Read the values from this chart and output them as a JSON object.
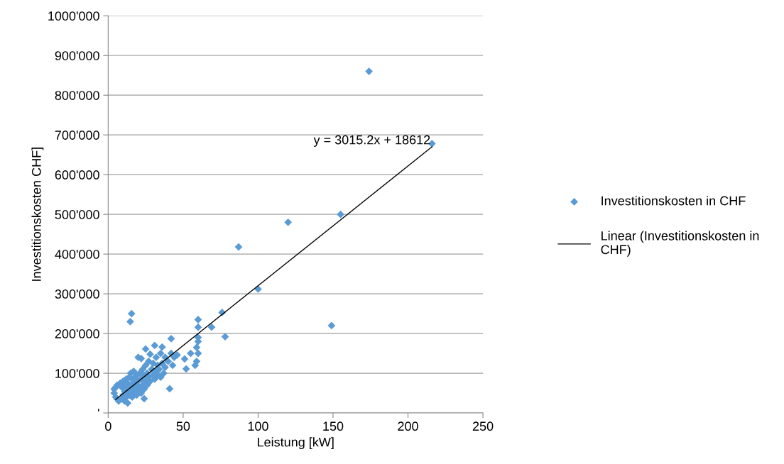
{
  "chart_data": {
    "type": "scatter",
    "xlabel": "Leistung [kW]",
    "ylabel": "Investitionskosten CHF]",
    "annotations": [
      "y = 3015.2x + 18612"
    ],
    "xlim": [
      0,
      250
    ],
    "xticks": [
      0,
      50,
      100,
      150,
      200,
      250
    ],
    "ylim": [
      0,
      1000000
    ],
    "yticks": [
      {
        "value": 0,
        "label": "'"
      },
      {
        "value": 100000,
        "label": "100'000"
      },
      {
        "value": 200000,
        "label": "200'000"
      },
      {
        "value": 300000,
        "label": "300'000"
      },
      {
        "value": 400000,
        "label": "400'000"
      },
      {
        "value": 500000,
        "label": "500'000"
      },
      {
        "value": 600000,
        "label": "600'000"
      },
      {
        "value": 700000,
        "label": "700'000"
      },
      {
        "value": 800000,
        "label": "800'000"
      },
      {
        "value": 900000,
        "label": "900'000"
      },
      {
        "value": 1000000,
        "label": "1000'000"
      }
    ],
    "grid": "y",
    "legend": "right",
    "marker": "diamond",
    "series": [
      {
        "name": "Investitionskosten in CHF",
        "color": "#5b9bd5",
        "x": [
          4,
          4,
          5,
          5,
          6,
          6,
          7,
          8,
          9,
          9,
          10,
          10,
          11,
          11,
          11,
          12,
          12,
          12,
          13,
          13,
          13,
          14,
          14,
          15,
          15,
          15,
          16,
          16,
          16,
          17,
          17,
          17,
          18,
          18,
          19,
          19,
          19,
          20,
          20,
          20,
          21,
          21,
          22,
          22,
          22,
          23,
          23,
          24,
          24,
          24,
          25,
          25,
          25,
          26,
          26,
          27,
          27,
          28,
          28,
          29,
          30,
          30,
          31,
          31,
          32,
          32,
          33,
          33,
          34,
          35,
          35,
          36,
          36,
          37,
          38,
          38,
          40,
          41,
          42,
          42,
          43,
          44,
          46,
          51,
          52,
          55,
          58,
          59,
          59,
          60,
          60,
          60,
          60,
          60,
          69,
          76,
          78,
          87,
          100,
          120,
          149,
          155,
          174,
          216,
          14.7,
          15.6
        ],
        "values": [
          50000,
          60000,
          40000,
          65000,
          35000,
          70000,
          30000,
          75000,
          35000,
          65000,
          45000,
          80000,
          30000,
          55000,
          70000,
          40000,
          65000,
          85000,
          25000,
          50000,
          75000,
          45000,
          90000,
          55000,
          70000,
          100000,
          40000,
          65000,
          85000,
          50000,
          75000,
          105000,
          60000,
          90000,
          45000,
          70000,
          95000,
          55000,
          80000,
          140000,
          65000,
          100000,
          50000,
          85000,
          137000,
          70000,
          110000,
          60000,
          95000,
          36000,
          80000,
          120000,
          161000,
          70000,
          100000,
          90000,
          130000,
          80000,
          148000,
          110000,
          95000,
          125000,
          85000,
          170000,
          105000,
          140000,
          95000,
          120000,
          110000,
          90000,
          150000,
          125000,
          166000,
          100000,
          140000,
          115000,
          130000,
          61000,
          187000,
          150000,
          120000,
          140000,
          146000,
          136000,
          111000,
          150000,
          120000,
          130000,
          165000,
          150000,
          180000,
          190000,
          216000,
          235000,
          216000,
          253000,
          192000,
          418000,
          312000,
          480000,
          220000,
          500000,
          860000,
          678000,
          230000,
          250000
        ]
      },
      {
        "name": "Linear (Investitionskosten in\nCHF)",
        "color": "#000000",
        "type": "line",
        "marker": "none",
        "x": [
          5,
          216
        ],
        "values": [
          34000,
          670000
        ]
      }
    ]
  }
}
